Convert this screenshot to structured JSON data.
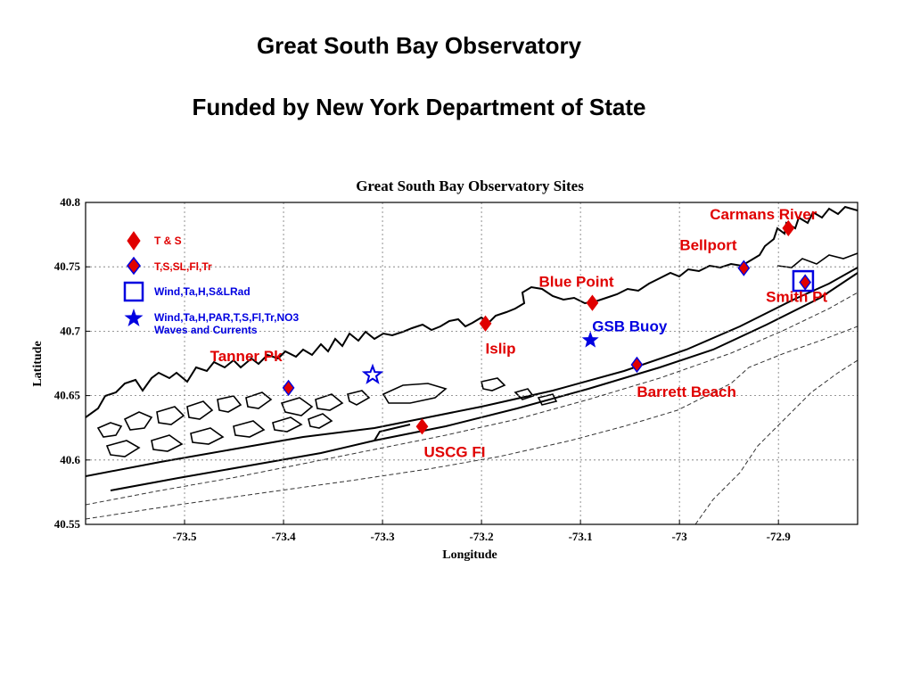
{
  "slide": {
    "title": "Great South Bay Observatory",
    "subtitle": "Funded by New York Department of State"
  },
  "map": {
    "title": "Great South Bay Observatory Sites",
    "xlabel": "Longitude",
    "ylabel": "Latitude",
    "xlim": [
      -73.6,
      -72.82
    ],
    "ylim": [
      40.55,
      40.8
    ],
    "xticks": [
      "-73.5",
      "-73.4",
      "-73.3",
      "-73.2",
      "-73.1",
      "-73",
      "-72.9"
    ],
    "yticks": [
      "40.8",
      "40.75",
      "40.7",
      "40.65",
      "40.6",
      "40.55"
    ],
    "legend": [
      {
        "symbol": "diamond-red",
        "label": "T & S"
      },
      {
        "symbol": "diamond-red-blue",
        "label": "T,S,SL,Fl,Tr"
      },
      {
        "symbol": "square-blue",
        "label": "Wind,Ta,H,S&LRad"
      },
      {
        "symbol": "star-blue",
        "label": "Wind,Ta,H,PAR,T,S,Fl,Tr,NO3",
        "label2": "Waves and Currents"
      }
    ],
    "sites": [
      {
        "label": "Carmans River",
        "lon": -72.89,
        "lat": 40.78,
        "symbol": "diamond-red"
      },
      {
        "label": "Bellport",
        "lon": -72.935,
        "lat": 40.749,
        "symbol": "diamond-red-blue"
      },
      {
        "label": "Blue Point",
        "lon": -73.088,
        "lat": 40.722,
        "symbol": "diamond-red"
      },
      {
        "label": "Islip",
        "lon": -73.196,
        "lat": 40.706,
        "symbol": "diamond-red"
      },
      {
        "label": "GSB Buoy",
        "lon": -73.09,
        "lat": 40.693,
        "symbol": "star-blue"
      },
      {
        "label": "Smith Pt",
        "lon": -72.873,
        "lat": 40.738,
        "symbol": "diamond-red-blue"
      },
      {
        "label": "Barrett Beach",
        "lon": -73.043,
        "lat": 40.674,
        "symbol": "diamond-red-blue"
      },
      {
        "label": "Tanner Pk",
        "lon": -73.395,
        "lat": 40.656,
        "symbol": "diamond-red-blue"
      },
      {
        "label": "USCG FI",
        "lon": -73.26,
        "lat": 40.626,
        "symbol": "diamond-red"
      }
    ],
    "extra_markers": [
      {
        "symbol": "star-blue-open",
        "lon": -73.31,
        "lat": 40.666
      },
      {
        "symbol": "square-blue",
        "lon": -72.875,
        "lat": 40.739
      }
    ],
    "colors": {
      "site_label": "#e00000",
      "buoy_label": "#0000e0",
      "marker_red": "#e00000",
      "marker_blue": "#0000e0"
    }
  }
}
